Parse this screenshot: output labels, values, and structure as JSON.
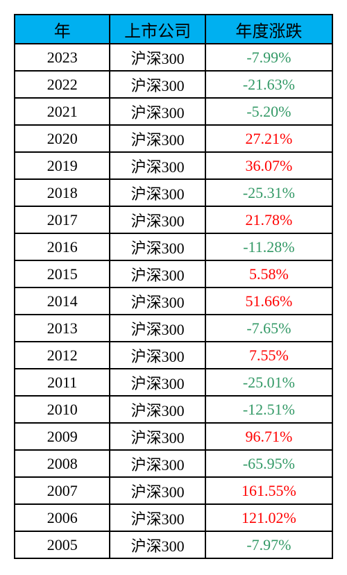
{
  "table": {
    "header_bg": "#00b0f0",
    "border_color": "#000000",
    "positive_color": "#ff0000",
    "negative_color": "#339966",
    "columns": [
      "年",
      "上市公司",
      "年度涨跌"
    ],
    "rows": [
      {
        "year": "2023",
        "company": "沪深300",
        "change": "-7.99%",
        "sign": "neg"
      },
      {
        "year": "2022",
        "company": "沪深300",
        "change": "-21.63%",
        "sign": "neg"
      },
      {
        "year": "2021",
        "company": "沪深300",
        "change": "-5.20%",
        "sign": "neg"
      },
      {
        "year": "2020",
        "company": "沪深300",
        "change": "27.21%",
        "sign": "pos"
      },
      {
        "year": "2019",
        "company": "沪深300",
        "change": "36.07%",
        "sign": "pos"
      },
      {
        "year": "2018",
        "company": "沪深300",
        "change": "-25.31%",
        "sign": "neg"
      },
      {
        "year": "2017",
        "company": "沪深300",
        "change": "21.78%",
        "sign": "pos"
      },
      {
        "year": "2016",
        "company": "沪深300",
        "change": "-11.28%",
        "sign": "neg"
      },
      {
        "year": "2015",
        "company": "沪深300",
        "change": "5.58%",
        "sign": "pos"
      },
      {
        "year": "2014",
        "company": "沪深300",
        "change": "51.66%",
        "sign": "pos"
      },
      {
        "year": "2013",
        "company": "沪深300",
        "change": "-7.65%",
        "sign": "neg"
      },
      {
        "year": "2012",
        "company": "沪深300",
        "change": "7.55%",
        "sign": "pos"
      },
      {
        "year": "2011",
        "company": "沪深300",
        "change": "-25.01%",
        "sign": "neg"
      },
      {
        "year": "2010",
        "company": "沪深300",
        "change": "-12.51%",
        "sign": "neg"
      },
      {
        "year": "2009",
        "company": "沪深300",
        "change": "96.71%",
        "sign": "pos"
      },
      {
        "year": "2008",
        "company": "沪深300",
        "change": "-65.95%",
        "sign": "neg"
      },
      {
        "year": "2007",
        "company": "沪深300",
        "change": "161.55%",
        "sign": "pos"
      },
      {
        "year": "2006",
        "company": "沪深300",
        "change": "121.02%",
        "sign": "pos"
      },
      {
        "year": "2005",
        "company": "沪深300",
        "change": "-7.97%",
        "sign": "neg"
      }
    ]
  }
}
